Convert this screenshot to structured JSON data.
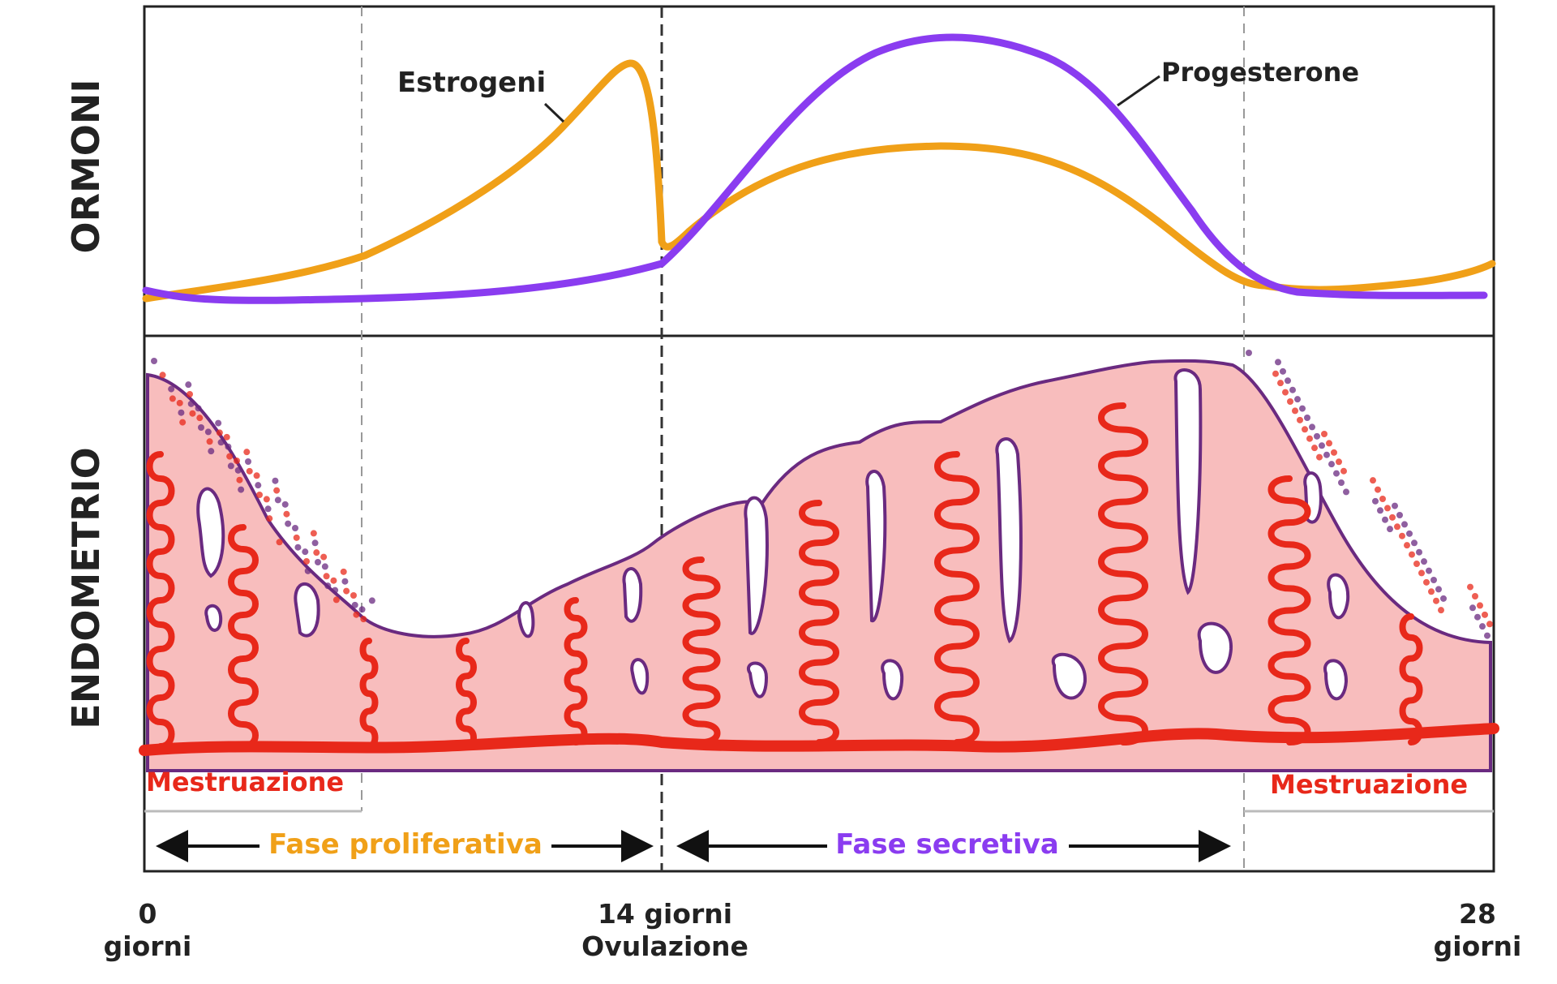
{
  "labels": {
    "ormoni": "ORMONI",
    "endometrio": "ENDOMETRIO",
    "estrogeni": "Estrogeni",
    "progesterone": "Progesterone",
    "mestruazione_left": "Mestruazione",
    "mestruazione_right": "Mestruazione",
    "fase_proliferativa": "Fase proliferativa",
    "fase_secretiva": "Fase secretiva"
  },
  "axis": {
    "left_value": "0",
    "left_unit": "giorni",
    "mid_value": "14 giorni",
    "mid_sub": "Ovulazione",
    "right_value": "28",
    "right_unit": "giorni"
  },
  "colors": {
    "estrogeni": "#f0a018",
    "progesterone": "#8a3cf0",
    "tissue": "#f8bdbd",
    "vessel": "#e8281a",
    "gland_outline": "#6a2a80",
    "mestruazione_text": "#e8281a",
    "fase_proliferativa_text": "#f0a018",
    "fase_secretiva_text": "#8a3cf0",
    "text_dark": "#222222"
  }
}
